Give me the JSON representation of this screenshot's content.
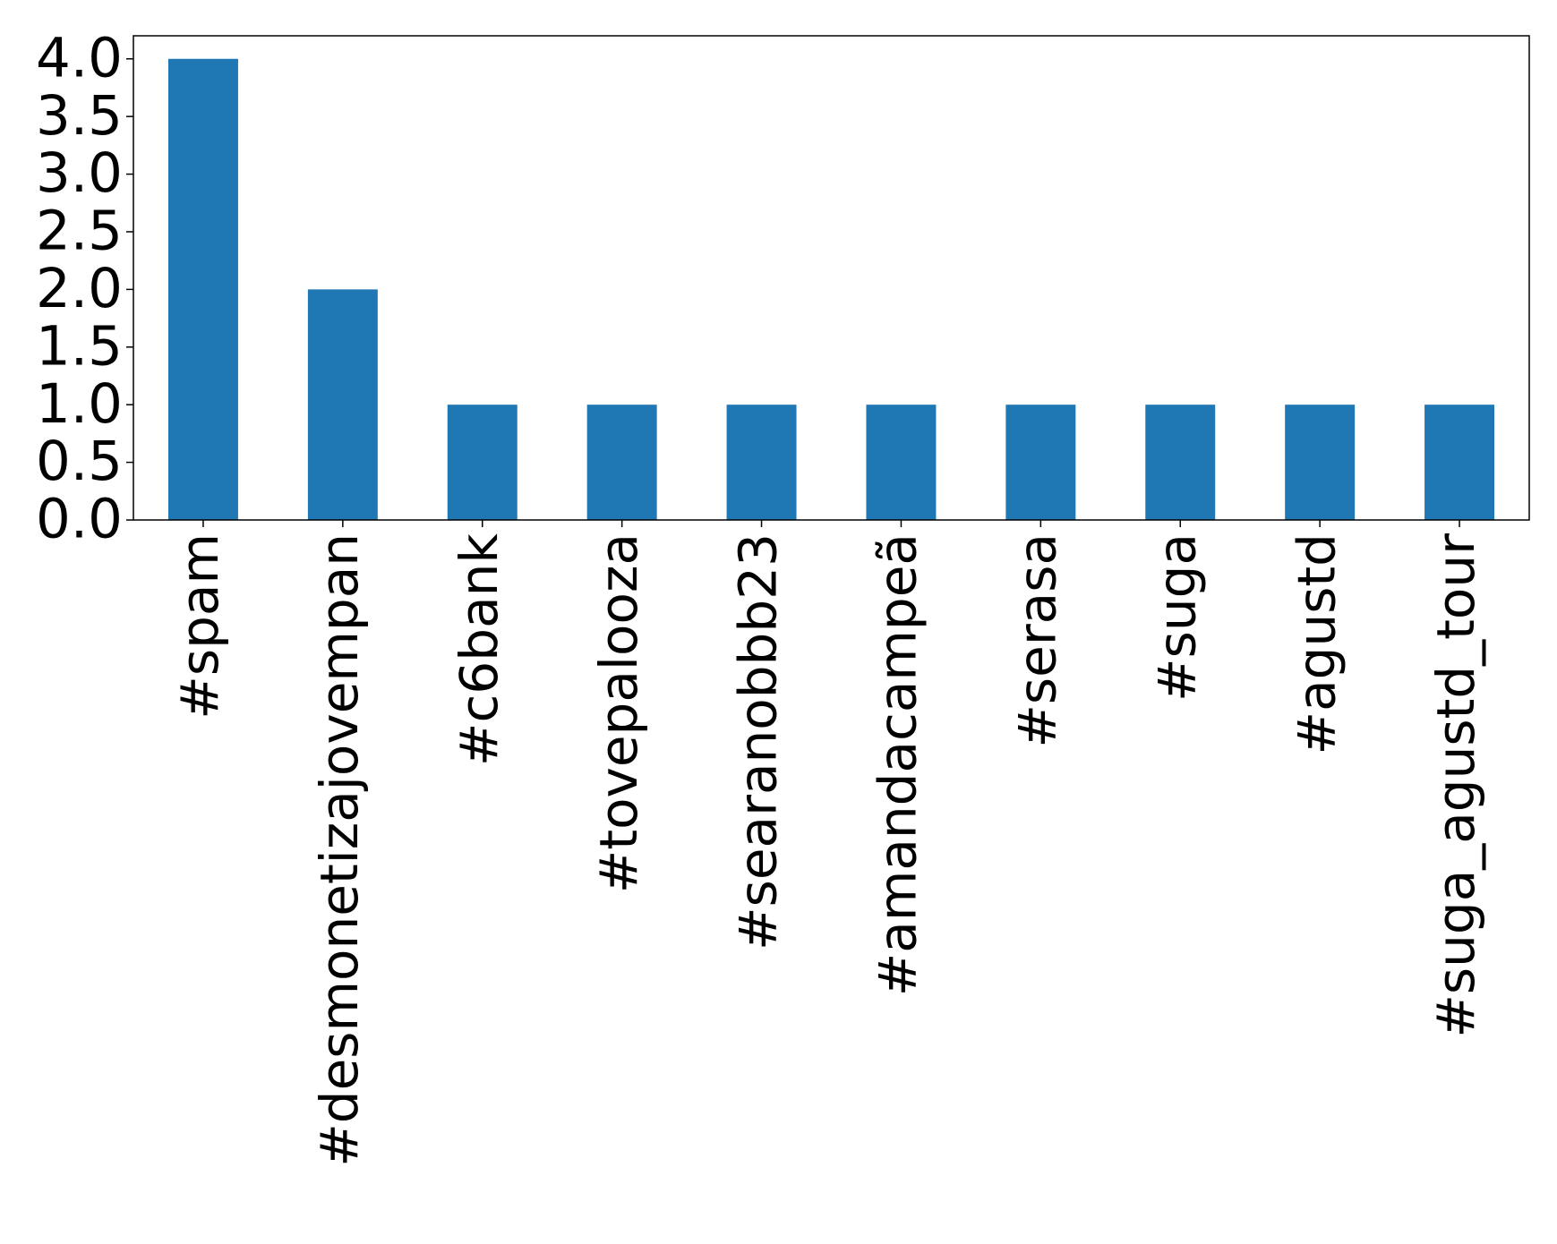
{
  "chart_data": {
    "type": "bar",
    "categories": [
      "#spam",
      "#desmonetizajovempan",
      "#c6bank",
      "#tovepalooza",
      "#searanobbb23",
      "#amandacampeã",
      "#serasa",
      "#suga",
      "#agustd",
      "#suga_agustd_tour"
    ],
    "values": [
      4,
      2,
      1,
      1,
      1,
      1,
      1,
      1,
      1,
      1
    ],
    "color": "#1f77b4",
    "ylim": [
      0,
      4.2
    ],
    "yticks": [
      {
        "value": 0,
        "label": "0.0"
      },
      {
        "value": 0.5,
        "label": "0.5"
      },
      {
        "value": 1,
        "label": "1.0"
      },
      {
        "value": 1.5,
        "label": "1.5"
      },
      {
        "value": 2,
        "label": "2.0"
      },
      {
        "value": 2.5,
        "label": "2.5"
      },
      {
        "value": 3,
        "label": "3.0"
      },
      {
        "value": 3.5,
        "label": "3.5"
      },
      {
        "value": 4,
        "label": "4.0"
      }
    ],
    "grid": false
  }
}
